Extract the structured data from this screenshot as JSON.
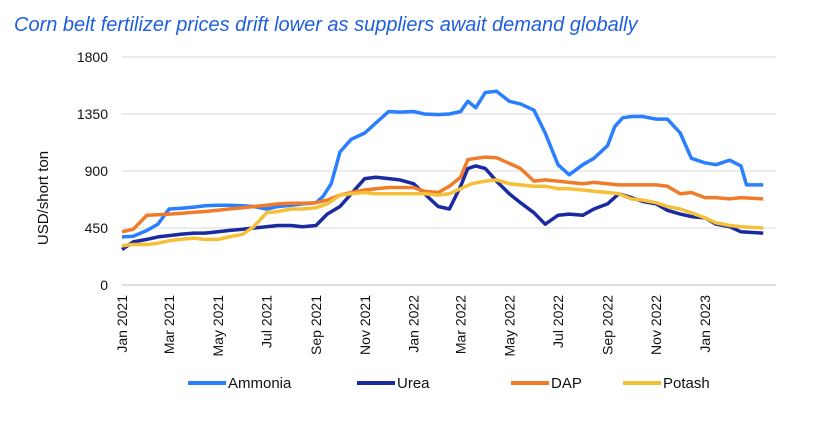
{
  "chart_data": {
    "type": "line",
    "title": "Corn belt fertilizer prices drift lower as suppliers await demand globally",
    "ylabel": "USD/short ton",
    "xlabel": "",
    "ylim": [
      0,
      1800
    ],
    "yticks": [
      0,
      450,
      900,
      1350,
      1800
    ],
    "xlim": [
      "2021-01-01",
      "2023-03-31"
    ],
    "xticks": [
      {
        "label": "Jan 2021",
        "date": "2021-01-01"
      },
      {
        "label": "Mar 2021",
        "date": "2021-03-01"
      },
      {
        "label": "May 2021",
        "date": "2021-05-01"
      },
      {
        "label": "Jul 2021",
        "date": "2021-07-01"
      },
      {
        "label": "Sep 2021",
        "date": "2021-09-01"
      },
      {
        "label": "Nov 2021",
        "date": "2021-11-01"
      },
      {
        "label": "Jan 2022",
        "date": "2022-01-01"
      },
      {
        "label": "Mar 2022",
        "date": "2022-03-01"
      },
      {
        "label": "May 2022",
        "date": "2022-05-01"
      },
      {
        "label": "Jul 2022",
        "date": "2022-07-01"
      },
      {
        "label": "Sep 2022",
        "date": "2022-09-01"
      },
      {
        "label": "Nov 2022",
        "date": "2022-11-01"
      },
      {
        "label": "Jan 2023",
        "date": "2023-01-01"
      }
    ],
    "grid": {
      "horizontal": true,
      "vertical": false
    },
    "legend_position": "bottom",
    "series": [
      {
        "name": "Ammonia",
        "color": "#2a7fff",
        "points": [
          [
            "2021-01-01",
            380
          ],
          [
            "2021-01-15",
            385
          ],
          [
            "2021-02-01",
            430
          ],
          [
            "2021-02-15",
            480
          ],
          [
            "2021-03-01",
            600
          ],
          [
            "2021-03-15",
            605
          ],
          [
            "2021-04-01",
            615
          ],
          [
            "2021-04-15",
            625
          ],
          [
            "2021-05-01",
            630
          ],
          [
            "2021-05-15",
            630
          ],
          [
            "2021-06-01",
            625
          ],
          [
            "2021-06-15",
            620
          ],
          [
            "2021-07-01",
            600
          ],
          [
            "2021-07-15",
            620
          ],
          [
            "2021-08-01",
            630
          ],
          [
            "2021-08-15",
            640
          ],
          [
            "2021-09-01",
            650
          ],
          [
            "2021-09-10",
            700
          ],
          [
            "2021-09-20",
            800
          ],
          [
            "2021-10-01",
            1050
          ],
          [
            "2021-10-15",
            1150
          ],
          [
            "2021-11-01",
            1200
          ],
          [
            "2021-11-15",
            1280
          ],
          [
            "2021-12-01",
            1370
          ],
          [
            "2021-12-15",
            1365
          ],
          [
            "2022-01-01",
            1370
          ],
          [
            "2022-01-15",
            1350
          ],
          [
            "2022-02-01",
            1345
          ],
          [
            "2022-02-15",
            1350
          ],
          [
            "2022-03-01",
            1370
          ],
          [
            "2022-03-10",
            1450
          ],
          [
            "2022-03-20",
            1400
          ],
          [
            "2022-04-01",
            1520
          ],
          [
            "2022-04-15",
            1530
          ],
          [
            "2022-05-01",
            1450
          ],
          [
            "2022-05-15",
            1430
          ],
          [
            "2022-06-01",
            1380
          ],
          [
            "2022-06-15",
            1200
          ],
          [
            "2022-07-01",
            950
          ],
          [
            "2022-07-15",
            870
          ],
          [
            "2022-08-01",
            950
          ],
          [
            "2022-08-15",
            1000
          ],
          [
            "2022-09-01",
            1100
          ],
          [
            "2022-09-10",
            1250
          ],
          [
            "2022-09-20",
            1320
          ],
          [
            "2022-10-01",
            1330
          ],
          [
            "2022-10-15",
            1330
          ],
          [
            "2022-11-01",
            1310
          ],
          [
            "2022-11-15",
            1310
          ],
          [
            "2022-12-01",
            1200
          ],
          [
            "2022-12-15",
            1000
          ],
          [
            "2023-01-01",
            965
          ],
          [
            "2023-01-15",
            950
          ],
          [
            "2023-02-01",
            985
          ],
          [
            "2023-02-15",
            940
          ],
          [
            "2023-02-22",
            790
          ],
          [
            "2023-03-15",
            790
          ]
        ]
      },
      {
        "name": "Urea",
        "color": "#1a2aa0",
        "points": [
          [
            "2021-01-01",
            280
          ],
          [
            "2021-01-15",
            340
          ],
          [
            "2021-02-01",
            360
          ],
          [
            "2021-02-15",
            380
          ],
          [
            "2021-03-01",
            390
          ],
          [
            "2021-03-15",
            400
          ],
          [
            "2021-04-01",
            410
          ],
          [
            "2021-04-15",
            410
          ],
          [
            "2021-05-01",
            420
          ],
          [
            "2021-05-15",
            430
          ],
          [
            "2021-06-01",
            440
          ],
          [
            "2021-06-15",
            450
          ],
          [
            "2021-07-01",
            460
          ],
          [
            "2021-07-15",
            470
          ],
          [
            "2021-08-01",
            470
          ],
          [
            "2021-08-15",
            460
          ],
          [
            "2021-09-01",
            470
          ],
          [
            "2021-09-15",
            560
          ],
          [
            "2021-10-01",
            620
          ],
          [
            "2021-10-15",
            720
          ],
          [
            "2021-11-01",
            840
          ],
          [
            "2021-11-15",
            850
          ],
          [
            "2021-12-01",
            840
          ],
          [
            "2021-12-15",
            830
          ],
          [
            "2022-01-01",
            800
          ],
          [
            "2022-01-15",
            720
          ],
          [
            "2022-02-01",
            620
          ],
          [
            "2022-02-15",
            600
          ],
          [
            "2022-03-01",
            780
          ],
          [
            "2022-03-10",
            920
          ],
          [
            "2022-03-20",
            940
          ],
          [
            "2022-04-01",
            920
          ],
          [
            "2022-04-15",
            820
          ],
          [
            "2022-05-01",
            720
          ],
          [
            "2022-05-15",
            650
          ],
          [
            "2022-06-01",
            570
          ],
          [
            "2022-06-15",
            480
          ],
          [
            "2022-07-01",
            550
          ],
          [
            "2022-07-15",
            560
          ],
          [
            "2022-08-01",
            550
          ],
          [
            "2022-08-15",
            600
          ],
          [
            "2022-09-01",
            640
          ],
          [
            "2022-09-15",
            720
          ],
          [
            "2022-10-01",
            690
          ],
          [
            "2022-10-15",
            660
          ],
          [
            "2022-11-01",
            640
          ],
          [
            "2022-11-15",
            590
          ],
          [
            "2022-12-01",
            560
          ],
          [
            "2022-12-15",
            540
          ],
          [
            "2023-01-01",
            530
          ],
          [
            "2023-01-15",
            480
          ],
          [
            "2023-02-01",
            460
          ],
          [
            "2023-02-15",
            420
          ],
          [
            "2023-03-15",
            410
          ]
        ]
      },
      {
        "name": "DAP",
        "color": "#f07c2a",
        "points": [
          [
            "2021-01-01",
            420
          ],
          [
            "2021-01-15",
            440
          ],
          [
            "2021-02-01",
            550
          ],
          [
            "2021-02-15",
            555
          ],
          [
            "2021-03-01",
            560
          ],
          [
            "2021-03-15",
            565
          ],
          [
            "2021-04-01",
            575
          ],
          [
            "2021-04-15",
            580
          ],
          [
            "2021-05-01",
            590
          ],
          [
            "2021-05-15",
            600
          ],
          [
            "2021-06-01",
            610
          ],
          [
            "2021-06-15",
            620
          ],
          [
            "2021-07-01",
            630
          ],
          [
            "2021-07-15",
            640
          ],
          [
            "2021-08-01",
            645
          ],
          [
            "2021-08-15",
            645
          ],
          [
            "2021-09-01",
            650
          ],
          [
            "2021-09-15",
            670
          ],
          [
            "2021-10-01",
            710
          ],
          [
            "2021-10-15",
            730
          ],
          [
            "2021-11-01",
            750
          ],
          [
            "2021-11-15",
            760
          ],
          [
            "2021-12-01",
            770
          ],
          [
            "2021-12-15",
            770
          ],
          [
            "2022-01-01",
            770
          ],
          [
            "2022-01-15",
            740
          ],
          [
            "2022-02-01",
            730
          ],
          [
            "2022-02-15",
            780
          ],
          [
            "2022-03-01",
            850
          ],
          [
            "2022-03-10",
            990
          ],
          [
            "2022-03-20",
            1000
          ],
          [
            "2022-04-01",
            1010
          ],
          [
            "2022-04-15",
            1005
          ],
          [
            "2022-05-01",
            960
          ],
          [
            "2022-05-15",
            920
          ],
          [
            "2022-06-01",
            820
          ],
          [
            "2022-06-15",
            830
          ],
          [
            "2022-07-01",
            820
          ],
          [
            "2022-07-15",
            810
          ],
          [
            "2022-08-01",
            800
          ],
          [
            "2022-08-15",
            810
          ],
          [
            "2022-09-01",
            800
          ],
          [
            "2022-09-15",
            790
          ],
          [
            "2022-10-01",
            790
          ],
          [
            "2022-10-15",
            790
          ],
          [
            "2022-11-01",
            790
          ],
          [
            "2022-11-15",
            780
          ],
          [
            "2022-12-01",
            720
          ],
          [
            "2022-12-15",
            730
          ],
          [
            "2023-01-01",
            690
          ],
          [
            "2023-01-15",
            690
          ],
          [
            "2023-02-01",
            680
          ],
          [
            "2023-02-15",
            690
          ],
          [
            "2023-03-15",
            680
          ]
        ]
      },
      {
        "name": "Potash",
        "color": "#f5c038",
        "points": [
          [
            "2021-01-01",
            310
          ],
          [
            "2021-01-15",
            320
          ],
          [
            "2021-02-01",
            320
          ],
          [
            "2021-02-15",
            330
          ],
          [
            "2021-03-01",
            350
          ],
          [
            "2021-03-15",
            360
          ],
          [
            "2021-04-01",
            370
          ],
          [
            "2021-04-15",
            360
          ],
          [
            "2021-05-01",
            360
          ],
          [
            "2021-05-15",
            380
          ],
          [
            "2021-06-01",
            400
          ],
          [
            "2021-06-15",
            460
          ],
          [
            "2021-07-01",
            570
          ],
          [
            "2021-07-15",
            580
          ],
          [
            "2021-08-01",
            600
          ],
          [
            "2021-08-15",
            600
          ],
          [
            "2021-09-01",
            610
          ],
          [
            "2021-09-15",
            640
          ],
          [
            "2021-10-01",
            710
          ],
          [
            "2021-10-15",
            720
          ],
          [
            "2021-11-01",
            730
          ],
          [
            "2021-11-15",
            720
          ],
          [
            "2021-12-01",
            720
          ],
          [
            "2021-12-15",
            720
          ],
          [
            "2022-01-01",
            720
          ],
          [
            "2022-01-15",
            720
          ],
          [
            "2022-02-01",
            710
          ],
          [
            "2022-02-15",
            720
          ],
          [
            "2022-03-01",
            760
          ],
          [
            "2022-03-15",
            800
          ],
          [
            "2022-04-01",
            820
          ],
          [
            "2022-04-15",
            830
          ],
          [
            "2022-05-01",
            800
          ],
          [
            "2022-05-15",
            790
          ],
          [
            "2022-06-01",
            780
          ],
          [
            "2022-06-15",
            780
          ],
          [
            "2022-07-01",
            760
          ],
          [
            "2022-07-15",
            760
          ],
          [
            "2022-08-01",
            750
          ],
          [
            "2022-08-15",
            740
          ],
          [
            "2022-09-01",
            730
          ],
          [
            "2022-09-15",
            720
          ],
          [
            "2022-10-01",
            680
          ],
          [
            "2022-10-15",
            670
          ],
          [
            "2022-11-01",
            650
          ],
          [
            "2022-11-15",
            620
          ],
          [
            "2022-12-01",
            600
          ],
          [
            "2022-12-15",
            570
          ],
          [
            "2023-01-01",
            530
          ],
          [
            "2023-01-15",
            490
          ],
          [
            "2023-02-01",
            470
          ],
          [
            "2023-02-15",
            460
          ],
          [
            "2023-03-15",
            450
          ]
        ]
      }
    ]
  }
}
